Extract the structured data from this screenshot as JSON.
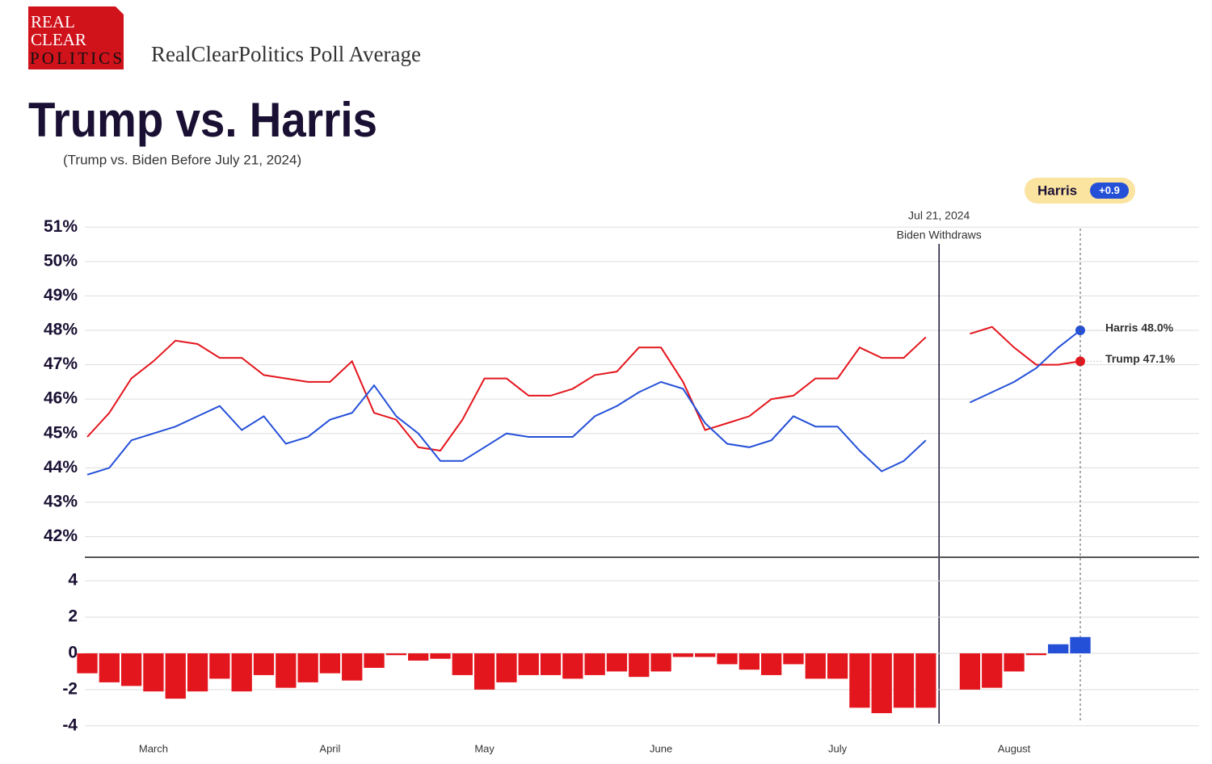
{
  "header": {
    "logo": [
      "REAL",
      "CLEAR",
      "POLITICS"
    ],
    "site_title": "RealClearPolitics Poll Average"
  },
  "chart_data": [
    {
      "type": "line",
      "title": "Trump vs. Harris",
      "subtitle": "(Trump vs. Biden Before July 21, 2024)",
      "ylim": [
        41.4,
        51.5
      ],
      "yticks": [
        {
          "value": 51,
          "label": "51%"
        },
        {
          "value": 50,
          "label": "50%"
        },
        {
          "value": 49,
          "label": "49%"
        },
        {
          "value": 48,
          "label": "48%"
        },
        {
          "value": 47,
          "label": "47%"
        },
        {
          "value": 46,
          "label": "46%"
        },
        {
          "value": 45,
          "label": "45%"
        },
        {
          "value": 44,
          "label": "44%"
        },
        {
          "value": 43,
          "label": "43%"
        },
        {
          "value": 42,
          "label": "42%"
        }
      ],
      "grid": true,
      "event": {
        "date": "Jul 21, 2024",
        "label": "Biden Withdraws",
        "index": 39
      },
      "leader": {
        "name": "Harris",
        "spread_label": "+0.9"
      },
      "series": [
        {
          "name": "Trump",
          "color": "#e3161d",
          "last_label": "Trump 47.1%",
          "values": [
            44.9,
            45.6,
            46.6,
            47.1,
            47.7,
            47.6,
            47.2,
            47.2,
            46.7,
            46.6,
            46.5,
            46.5,
            47.1,
            45.6,
            45.4,
            44.6,
            44.5,
            45.4,
            46.6,
            46.6,
            46.1,
            46.1,
            46.3,
            46.7,
            46.8,
            47.5,
            47.5,
            46.5,
            45.1,
            45.3,
            45.5,
            46.0,
            46.1,
            46.6,
            46.6,
            47.5,
            47.2,
            47.2,
            47.8,
            null,
            47.9,
            48.1,
            47.5,
            47.0,
            47.0,
            47.1
          ]
        },
        {
          "name": "Harris",
          "color": "#2450d8",
          "last_label": "Harris 48.0%",
          "values": [
            43.8,
            44.0,
            44.8,
            45.0,
            45.2,
            45.5,
            45.8,
            45.1,
            45.5,
            44.7,
            44.9,
            45.4,
            45.6,
            46.4,
            45.5,
            45.0,
            44.2,
            44.2,
            44.6,
            45.0,
            44.9,
            44.9,
            44.9,
            45.5,
            45.8,
            46.2,
            46.5,
            46.3,
            45.3,
            44.7,
            44.6,
            44.8,
            45.5,
            45.2,
            45.2,
            44.5,
            43.9,
            44.2,
            44.8,
            null,
            45.9,
            46.2,
            46.5,
            46.9,
            47.5,
            48.0
          ]
        }
      ]
    },
    {
      "type": "bar",
      "ylim": [
        -4.5,
        5.3
      ],
      "yticks": [
        4,
        2,
        0,
        -2,
        -4
      ],
      "grid": true,
      "positive_color": "#2450d8",
      "negative_color": "#e3161d",
      "categories": [
        null,
        null,
        null,
        "March",
        null,
        null,
        null,
        null,
        null,
        null,
        null,
        "April",
        null,
        null,
        null,
        null,
        null,
        null,
        "May",
        null,
        null,
        null,
        null,
        null,
        null,
        null,
        "June",
        null,
        null,
        null,
        null,
        null,
        null,
        null,
        "July",
        null,
        null,
        null,
        null,
        null,
        null,
        null,
        "August",
        null,
        null,
        null
      ],
      "values": [
        -1.1,
        -1.6,
        -1.8,
        -2.1,
        -2.5,
        -2.1,
        -1.4,
        -2.1,
        -1.2,
        -1.9,
        -1.6,
        -1.1,
        -1.5,
        -0.8,
        -0.1,
        -0.4,
        -0.3,
        -1.2,
        -2.0,
        -1.6,
        -1.2,
        -1.2,
        -1.4,
        -1.2,
        -1.0,
        -1.3,
        -1.0,
        -0.2,
        -0.2,
        -0.6,
        -0.9,
        -1.2,
        -0.6,
        -1.4,
        -1.4,
        -3.0,
        -3.3,
        -3.0,
        -3.0,
        null,
        -2.0,
        -1.9,
        -1.0,
        -0.1,
        0.5,
        0.9
      ]
    }
  ]
}
